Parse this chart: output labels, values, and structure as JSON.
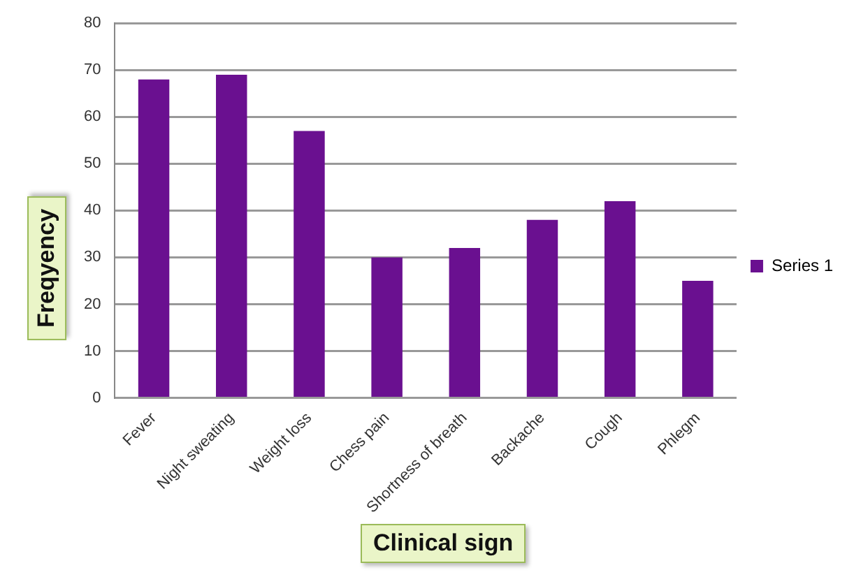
{
  "chart_data": {
    "type": "bar",
    "xlabel": "Clinical sign",
    "ylabel": "Freqyency",
    "categories": [
      "Fever",
      "Night sweating",
      "Weight loss",
      "Chess pain",
      "Shortness of breath",
      "Backache",
      "Cough",
      "Phlegm"
    ],
    "series": [
      {
        "name": "Series 1",
        "color": "#6a1090",
        "values": [
          68,
          69,
          57,
          30,
          32,
          38,
          42,
          25
        ]
      }
    ],
    "ylim": [
      0,
      80
    ],
    "yticks": [
      0,
      10,
      20,
      30,
      40,
      50,
      60,
      70,
      80
    ],
    "grid": "y",
    "legend": "right"
  }
}
